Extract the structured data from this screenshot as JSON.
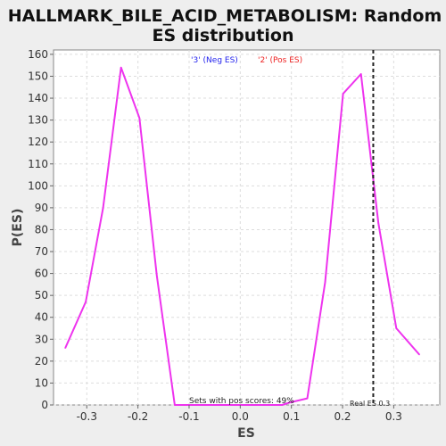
{
  "chart_data": {
    "type": "line",
    "title_line1": "HALLMARK_BILE_ACID_METABOLISM: Random",
    "title_line2": "ES distribution",
    "xlabel": "ES",
    "ylabel": "P(ES)",
    "xlim": [
      -0.365,
      0.39
    ],
    "ylim": [
      0,
      162
    ],
    "x_ticks": [
      -0.3,
      -0.2,
      -0.1,
      0.0,
      0.1,
      0.2,
      0.3
    ],
    "x_tick_labels": [
      "-0.3",
      "-0.2",
      "-0.1",
      "0.0",
      "0.1",
      "0.2",
      "0.3"
    ],
    "y_ticks": [
      0,
      10,
      20,
      30,
      40,
      50,
      60,
      70,
      80,
      90,
      100,
      110,
      120,
      130,
      140,
      150,
      160
    ],
    "y_tick_labels": [
      "0",
      "10",
      "20",
      "30",
      "40",
      "50",
      "60",
      "70",
      "80",
      "90",
      "100",
      "110",
      "120",
      "130",
      "140",
      "150",
      "160"
    ],
    "grid": true,
    "legend": [
      {
        "label": "'3' (Neg ES)",
        "color": "#2222ee"
      },
      {
        "label": "'2' (Pos ES)",
        "color": "#ee2222"
      }
    ],
    "series": [
      {
        "color": "#ee33ee",
        "x": [
          -0.342,
          -0.302,
          -0.268,
          -0.233,
          -0.197,
          -0.163,
          -0.128,
          -0.093,
          -0.058,
          -0.023,
          0.012,
          0.047,
          0.082,
          0.095,
          0.131,
          0.166,
          0.201,
          0.236,
          0.27,
          0.305,
          0.35
        ],
        "y": [
          26,
          47,
          90,
          154,
          131,
          59,
          0,
          0,
          0,
          0,
          0,
          0,
          0,
          1,
          3,
          56,
          142,
          151,
          83,
          35,
          23
        ]
      }
    ],
    "real_es": 0.26,
    "real_es_label": "Real ES 0.3",
    "annotation": "Sets with pos scores: 49%"
  }
}
